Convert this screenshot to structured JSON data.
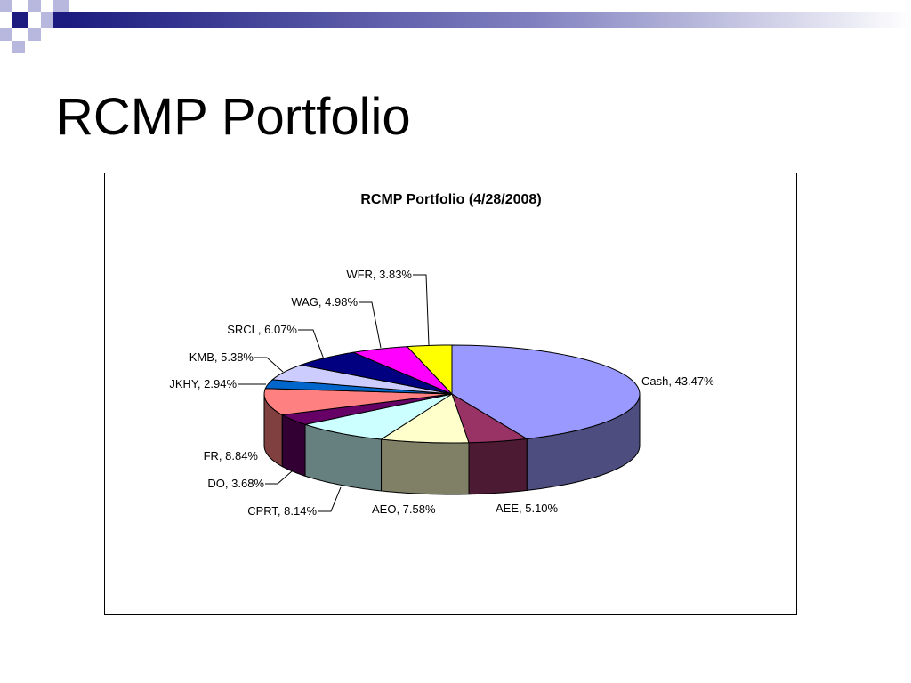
{
  "slide": {
    "title": "RCMP Portfolio"
  },
  "colors": {
    "deco_dark": "#1c1c80",
    "deco_light": "#b8b8de",
    "deco_gradient_end": "#ffffff",
    "frame_border": "#000000"
  },
  "chart_data": {
    "type": "pie",
    "title": "RCMP Portfolio (4/28/2008)",
    "three_d": true,
    "slices": [
      {
        "name": "Cash",
        "value": 43.47,
        "label": "Cash, 43.47%",
        "color": "#9999ff"
      },
      {
        "name": "AEE",
        "value": 5.1,
        "label": "AEE, 5.10%",
        "color": "#993366"
      },
      {
        "name": "AEO",
        "value": 7.58,
        "label": "AEO, 7.58%",
        "color": "#ffffcc"
      },
      {
        "name": "CPRT",
        "value": 8.14,
        "label": "CPRT, 8.14%",
        "color": "#ccffff"
      },
      {
        "name": "DO",
        "value": 3.68,
        "label": "DO, 3.68%",
        "color": "#660066"
      },
      {
        "name": "FR",
        "value": 8.84,
        "label": "FR, 8.84%",
        "color": "#ff8080"
      },
      {
        "name": "JKHY",
        "value": 2.94,
        "label": "JKHY, 2.94%",
        "color": "#0066cc"
      },
      {
        "name": "KMB",
        "value": 5.38,
        "label": "KMB, 5.38%",
        "color": "#ccccff"
      },
      {
        "name": "SRCL",
        "value": 6.07,
        "label": "SRCL, 6.07%",
        "color": "#000080"
      },
      {
        "name": "WAG",
        "value": 4.98,
        "label": "WAG, 4.98%",
        "color": "#ff00ff"
      },
      {
        "name": "WFR",
        "value": 3.83,
        "label": "WFR, 3.83%",
        "color": "#ffff00"
      }
    ]
  }
}
